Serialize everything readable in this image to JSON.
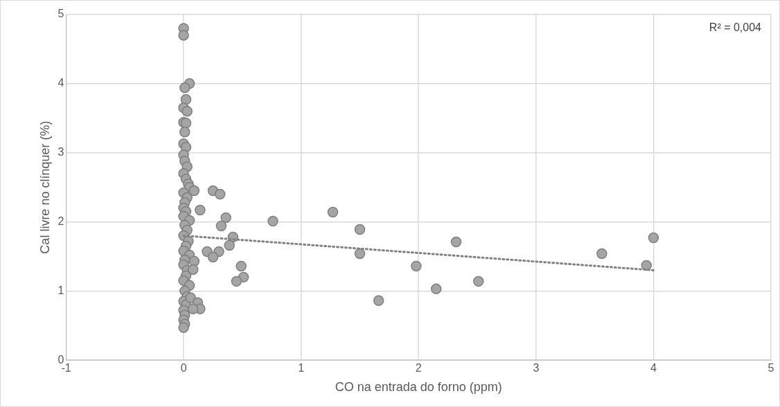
{
  "chart_data": {
    "type": "scatter",
    "xlabel": "CO na entrada do forno (ppm)",
    "ylabel": "Cal livre no clínquer (%)",
    "annotations": [
      "R² = 0,004"
    ],
    "xlim": [
      -1,
      5
    ],
    "xticks": [
      -1,
      0,
      1,
      2,
      3,
      4,
      5
    ],
    "ylim": [
      0,
      5
    ],
    "yticks": [
      0,
      1,
      2,
      3,
      4,
      5
    ],
    "grid": true,
    "legend": false,
    "marker": "circle",
    "series": [
      {
        "color": "#a5a5a5",
        "x": [
          0,
          0,
          0.05,
          0.01,
          0.02,
          0,
          0.03,
          0,
          0.02,
          0.01,
          0,
          0.02,
          0,
          0.01,
          0.03,
          0,
          0.02,
          0.04,
          0.05,
          0,
          0.03,
          0.01,
          0,
          0.02,
          0,
          0.05,
          0.01,
          0.03,
          0,
          0.04,
          0.02,
          0,
          0.05,
          0.01,
          0,
          0.03,
          0.02,
          0,
          0.05,
          0.01,
          0.03,
          0,
          0.02,
          0.06,
          0,
          0.01,
          0,
          0.01,
          0,
          0.25,
          0.31,
          0.36,
          0.32,
          0.42,
          0.39,
          0.2,
          0.3,
          0.25,
          0.49,
          0.51,
          0.45,
          0.76,
          1.27,
          1.5,
          1.5,
          1.98,
          2.15,
          1.66,
          2.32,
          2.51,
          3.56,
          3.94,
          4,
          0.14,
          0.09,
          0.12,
          0.14,
          0.08,
          0.09,
          0.08
        ],
        "values": [
          4.8,
          4.7,
          4,
          3.94,
          3.77,
          3.65,
          3.6,
          3.44,
          3.43,
          3.3,
          3.13,
          3.08,
          2.97,
          2.88,
          2.8,
          2.7,
          2.62,
          2.55,
          2.5,
          2.42,
          2.35,
          2.28,
          2.2,
          2.15,
          2.08,
          2.02,
          1.95,
          1.88,
          1.8,
          1.72,
          1.65,
          1.58,
          1.52,
          1.45,
          1.38,
          1.3,
          1.22,
          1.15,
          1.08,
          1,
          0.92,
          0.85,
          0.8,
          0.9,
          0.72,
          0.65,
          0.58,
          0.52,
          0.47,
          2.45,
          2.4,
          2.06,
          1.94,
          1.78,
          1.66,
          1.57,
          1.57,
          1.49,
          1.36,
          1.2,
          1.14,
          2.01,
          2.14,
          1.89,
          1.54,
          1.36,
          1.03,
          0.86,
          1.71,
          1.14,
          1.54,
          1.37,
          1.77,
          2.17,
          2.45,
          0.83,
          0.74,
          0.74,
          1.43,
          1.31
        ]
      },
      {
        "type": "line",
        "color": "#808080",
        "line_style": "dotted",
        "marker": "none",
        "x": [
          0,
          4
        ],
        "values": [
          1.8,
          1.3
        ]
      }
    ]
  }
}
